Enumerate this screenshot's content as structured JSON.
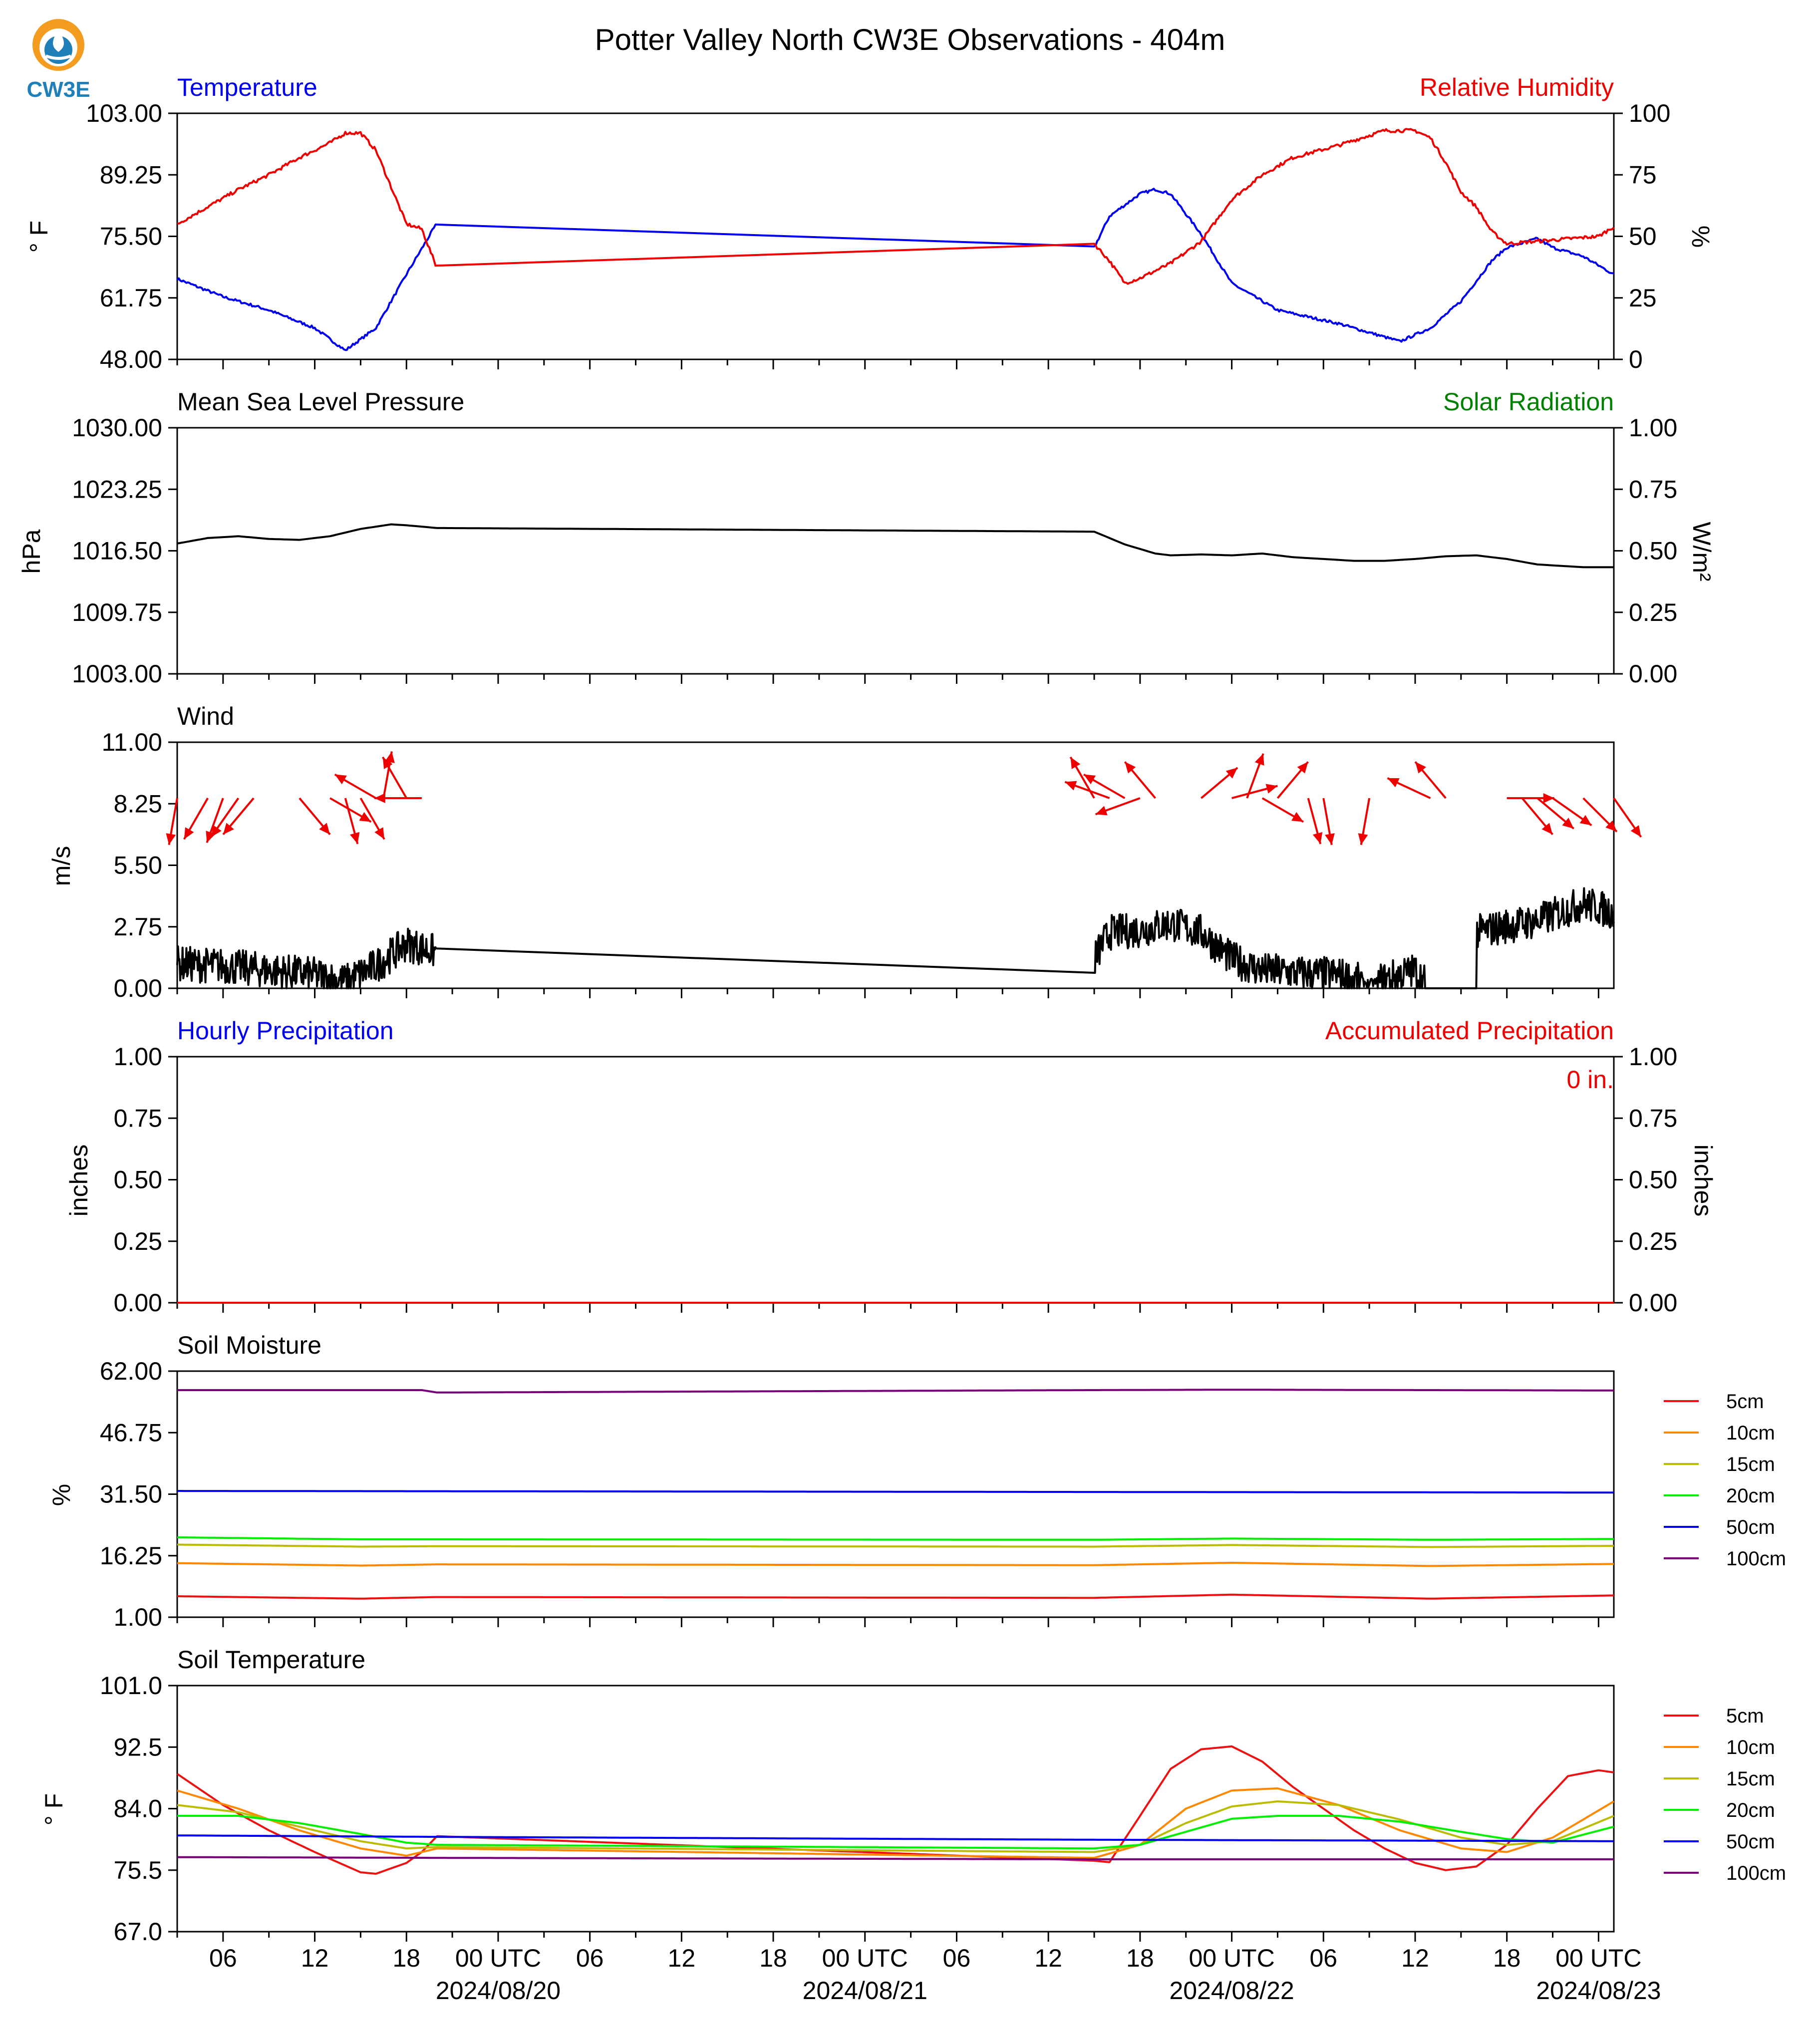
{
  "title": "Potter Valley North CW3E Observations - 404m",
  "logo_text": "CW3E",
  "colors": {
    "temperature": "#0000ee",
    "humidity": "#ee0000",
    "solar": "#008000",
    "black": "#000000",
    "brand_orange": "#f39c1f",
    "brand_blue": "#1f7fb8",
    "soil_5cm": "#ee1111",
    "soil_10cm": "#ff8800",
    "soil_15cm": "#bbbb00",
    "soil_20cm": "#00ee00",
    "soil_50cm": "#0000ee",
    "soil_100cm": "#770077"
  },
  "x_axis": {
    "hour_ticks": [
      {
        "hour": 6,
        "label": "06"
      },
      {
        "hour": 12,
        "label": "12"
      },
      {
        "hour": 18,
        "label": "18"
      },
      {
        "hour": 24,
        "label": "00 UTC",
        "date": "2024/08/20"
      },
      {
        "hour": 30,
        "label": "06"
      },
      {
        "hour": 36,
        "label": "12"
      },
      {
        "hour": 42,
        "label": "18"
      },
      {
        "hour": 48,
        "label": "00 UTC",
        "date": "2024/08/21"
      },
      {
        "hour": 54,
        "label": "06"
      },
      {
        "hour": 60,
        "label": "12"
      },
      {
        "hour": 66,
        "label": "18"
      },
      {
        "hour": 72,
        "label": "00 UTC",
        "date": "2024/08/22"
      },
      {
        "hour": 78,
        "label": "06"
      },
      {
        "hour": 84,
        "label": "12"
      },
      {
        "hour": 90,
        "label": "18"
      },
      {
        "hour": 96,
        "label": "00 UTC",
        "date": "2024/08/23"
      }
    ],
    "range_hours": [
      3,
      97
    ]
  },
  "chart_data": [
    {
      "type": "line",
      "title_left": "Temperature",
      "title_right": "Relative Humidity",
      "ylabel": "° F",
      "ylabel_right": "%",
      "ylim": [
        48,
        103
      ],
      "ylim_right": [
        0,
        100
      ],
      "yticks": [
        "103.00",
        "89.25",
        "75.50",
        "61.75",
        "48.00"
      ],
      "yticks_right": [
        "100",
        "75",
        "50",
        "25",
        "0"
      ],
      "series": [
        {
          "axis": "left",
          "color_key": "temperature",
          "x": [
            3,
            6,
            9,
            12,
            14,
            16,
            18,
            20,
            63,
            64,
            66,
            67,
            68,
            70,
            72,
            75,
            79,
            83,
            85,
            87,
            89,
            90,
            92,
            93,
            95,
            97
          ],
          "y": [
            66,
            62,
            59,
            55,
            50,
            55,
            67,
            78.5,
            73,
            80,
            85,
            86,
            85,
            76,
            65,
            59,
            56,
            52,
            55,
            61,
            70,
            73,
            75,
            73,
            71,
            67
          ]
        },
        {
          "axis": "right",
          "color_key": "humidity",
          "x": [
            3,
            5,
            7,
            9,
            11,
            13,
            14,
            15,
            16,
            17,
            18,
            19,
            20,
            63,
            64,
            65,
            66,
            68,
            70,
            72,
            74,
            76,
            79,
            82,
            84,
            85,
            86,
            87,
            88,
            89,
            90,
            92,
            94,
            96,
            97
          ],
          "y": [
            55,
            62,
            69,
            75,
            82,
            88,
            92,
            92,
            85,
            70,
            55,
            53,
            37,
            47,
            40,
            31,
            33,
            39,
            48,
            65,
            75,
            82,
            87,
            93,
            93,
            90,
            80,
            68,
            62,
            52,
            47,
            48,
            49,
            50,
            54
          ]
        }
      ]
    },
    {
      "type": "line",
      "title_left": "Mean Sea Level Pressure",
      "title_right": "Solar Radiation",
      "ylabel": "hPa",
      "ylabel_right": "W/m²",
      "ylim": [
        1003,
        1030
      ],
      "ylim_right": [
        0,
        1
      ],
      "yticks": [
        "1030.00",
        "1023.25",
        "1016.50",
        "1009.75",
        "1003.00"
      ],
      "yticks_right": [
        "1.00",
        "0.75",
        "0.50",
        "0.25",
        "0.00"
      ],
      "series": [
        {
          "axis": "left",
          "color_key": "black",
          "x": [
            3,
            5,
            7,
            9,
            11,
            13,
            15,
            17,
            18,
            20,
            63,
            65,
            67,
            68,
            70,
            72,
            74,
            76,
            78,
            80,
            82,
            84,
            86,
            88,
            90,
            92,
            95,
            97
          ],
          "y": [
            1017.3,
            1017.9,
            1018.1,
            1017.8,
            1017.7,
            1018.1,
            1018.9,
            1019.4,
            1019.3,
            1019.0,
            1018.6,
            1017.2,
            1016.2,
            1016.0,
            1016.1,
            1016.0,
            1016.2,
            1015.8,
            1015.6,
            1015.4,
            1015.4,
            1015.6,
            1015.9,
            1016.0,
            1015.6,
            1015.0,
            1014.7,
            1014.7
          ]
        }
      ]
    },
    {
      "type": "line",
      "title_left": "Wind",
      "ylabel": "m/s",
      "ylim": [
        0,
        11
      ],
      "yticks": [
        "11.00",
        "8.25",
        "5.50",
        "2.75",
        "0.00"
      ],
      "series": [
        {
          "axis": "left",
          "color_key": "black",
          "noisy": true,
          "x": [
            3,
            6,
            9,
            12,
            14,
            16,
            18,
            20,
            63,
            64,
            66,
            68,
            70,
            72,
            74,
            76,
            79,
            81,
            83,
            84,
            85,
            86,
            88,
            90,
            92,
            95,
            97
          ],
          "y": [
            1.1,
            1.0,
            0.8,
            0.6,
            0.3,
            1.0,
            2.0,
            1.6,
            1.3,
            2.5,
            2.6,
            2.9,
            2.5,
            1.3,
            0.8,
            0.7,
            0.6,
            0.2,
            0.6,
            0.8,
            0.0,
            0.0,
            2.5,
            2.8,
            3.0,
            3.8,
            3.4
          ]
        }
      ],
      "arrows": {
        "color_key": "humidity",
        "y_level": 8.5,
        "items": [
          {
            "x": 3,
            "dir": 190
          },
          {
            "x": 5,
            "dir": 210
          },
          {
            "x": 6,
            "dir": 200
          },
          {
            "x": 7,
            "dir": 215
          },
          {
            "x": 8,
            "dir": 220
          },
          {
            "x": 11,
            "dir": 140
          },
          {
            "x": 13,
            "dir": 120
          },
          {
            "x": 14,
            "dir": 165
          },
          {
            "x": 15,
            "dir": 150
          },
          {
            "x": 16,
            "dir": 300
          },
          {
            "x": 16.5,
            "dir": 10
          },
          {
            "x": 18,
            "dir": 330
          },
          {
            "x": 19,
            "dir": 270
          },
          {
            "x": 63,
            "dir": 330
          },
          {
            "x": 64,
            "dir": 290
          },
          {
            "x": 65,
            "dir": 300
          },
          {
            "x": 66,
            "dir": 250
          },
          {
            "x": 67,
            "dir": 320
          },
          {
            "x": 70,
            "dir": 50
          },
          {
            "x": 72,
            "dir": 75
          },
          {
            "x": 73,
            "dir": 20
          },
          {
            "x": 74,
            "dir": 120
          },
          {
            "x": 75,
            "dir": 40
          },
          {
            "x": 77,
            "dir": 165
          },
          {
            "x": 78,
            "dir": 170
          },
          {
            "x": 81,
            "dir": 190
          },
          {
            "x": 85,
            "dir": 295
          },
          {
            "x": 86,
            "dir": 320
          },
          {
            "x": 90,
            "dir": 90
          },
          {
            "x": 91,
            "dir": 140
          },
          {
            "x": 92,
            "dir": 130
          },
          {
            "x": 93,
            "dir": 125
          },
          {
            "x": 95,
            "dir": 135
          },
          {
            "x": 97,
            "dir": 145
          }
        ]
      }
    },
    {
      "type": "line",
      "title_left": "Hourly Precipitation",
      "title_right": "Accumulated Precipitation",
      "ylabel": "inches",
      "ylabel_right": "inches",
      "ylim": [
        0,
        1
      ],
      "ylim_right": [
        0,
        1
      ],
      "yticks": [
        "1.00",
        "0.75",
        "0.50",
        "0.25",
        "0.00"
      ],
      "yticks_right": [
        "1.00",
        "0.75",
        "0.50",
        "0.25",
        "0.00"
      ],
      "annotation": "0 in.",
      "series": [
        {
          "axis": "left",
          "color_key": "humidity",
          "x": [
            3,
            97
          ],
          "y": [
            0,
            0
          ]
        }
      ]
    },
    {
      "type": "line",
      "title_left": "Soil Moisture",
      "ylabel": "%",
      "ylim": [
        1,
        62
      ],
      "yticks": [
        "62.00",
        "46.75",
        "31.50",
        "16.25",
        "1.00"
      ],
      "legend": [
        "5cm",
        "10cm",
        "15cm",
        "20cm",
        "50cm",
        "100cm"
      ],
      "series": [
        {
          "name": "5cm",
          "color_key": "soil_5cm",
          "x": [
            3,
            15,
            20,
            63,
            72,
            85,
            97
          ],
          "y": [
            6.2,
            5.6,
            6.0,
            5.8,
            6.6,
            5.6,
            6.4
          ]
        },
        {
          "name": "10cm",
          "color_key": "soil_10cm",
          "x": [
            3,
            15,
            20,
            63,
            72,
            85,
            97
          ],
          "y": [
            14.4,
            13.8,
            14.1,
            13.9,
            14.5,
            13.7,
            14.2
          ]
        },
        {
          "name": "15cm",
          "color_key": "soil_15cm",
          "x": [
            3,
            15,
            20,
            63,
            72,
            85,
            97
          ],
          "y": [
            19.0,
            18.5,
            18.6,
            18.5,
            18.9,
            18.4,
            18.7
          ]
        },
        {
          "name": "20cm",
          "color_key": "soil_20cm",
          "x": [
            3,
            15,
            20,
            63,
            72,
            85,
            97
          ],
          "y": [
            20.8,
            20.3,
            20.3,
            20.2,
            20.5,
            20.2,
            20.4
          ]
        },
        {
          "name": "50cm",
          "color_key": "soil_50cm",
          "x": [
            3,
            97
          ],
          "y": [
            32.3,
            31.9
          ]
        },
        {
          "name": "100cm",
          "color_key": "soil_100cm",
          "x": [
            3,
            19,
            20,
            63,
            72,
            97
          ],
          "y": [
            57.3,
            57.3,
            56.7,
            57.3,
            57.4,
            57.2
          ]
        }
      ]
    },
    {
      "type": "line",
      "title_left": "Soil Temperature",
      "ylabel": "° F",
      "ylim": [
        67,
        101
      ],
      "yticks": [
        "101.0",
        "92.5",
        "84.0",
        "75.5",
        "67.0"
      ],
      "legend": [
        "5cm",
        "10cm",
        "15cm",
        "20cm",
        "50cm",
        "100cm"
      ],
      "series": [
        {
          "name": "5cm",
          "color_key": "soil_5cm",
          "x": [
            3,
            6,
            9,
            12,
            15,
            16,
            18,
            19,
            20,
            63,
            64,
            66,
            68,
            70,
            72,
            74,
            76,
            78,
            80,
            82,
            84,
            86,
            88,
            90,
            92,
            94,
            96,
            97
          ],
          "y": [
            88.8,
            84.5,
            81.0,
            78.0,
            75.2,
            75.0,
            76.5,
            78.0,
            80.2,
            76.8,
            76.6,
            83.0,
            89.5,
            92.2,
            92.6,
            90.5,
            87.0,
            84.0,
            81.0,
            78.5,
            76.5,
            75.5,
            76.0,
            79.0,
            84.0,
            88.5,
            89.3,
            89.0
          ]
        },
        {
          "name": "10cm",
          "color_key": "soil_10cm",
          "x": [
            3,
            7,
            11,
            15,
            18,
            20,
            63,
            66,
            69,
            72,
            75,
            79,
            83,
            87,
            90,
            93,
            97
          ],
          "y": [
            86.5,
            84.0,
            81.0,
            78.5,
            77.5,
            78.5,
            77.2,
            79.0,
            84.0,
            86.5,
            86.8,
            84.5,
            81.0,
            78.5,
            78.0,
            80.0,
            85.0
          ]
        },
        {
          "name": "15cm",
          "color_key": "soil_15cm",
          "x": [
            3,
            7,
            11,
            15,
            18,
            20,
            63,
            66,
            69,
            72,
            75,
            79,
            83,
            87,
            90,
            93,
            97
          ],
          "y": [
            84.5,
            83.5,
            81.5,
            79.5,
            78.5,
            78.7,
            78.0,
            79.0,
            82.0,
            84.3,
            85.0,
            84.5,
            82.5,
            80.0,
            79.0,
            79.5,
            83.0
          ]
        },
        {
          "name": "20cm",
          "color_key": "soil_20cm",
          "x": [
            3,
            7,
            11,
            15,
            18,
            20,
            63,
            66,
            69,
            72,
            75,
            79,
            83,
            87,
            90,
            93,
            97
          ],
          "y": [
            83.0,
            83.0,
            82.0,
            80.5,
            79.3,
            79.0,
            78.5,
            79.0,
            80.8,
            82.6,
            83.0,
            83.0,
            82.2,
            80.8,
            79.8,
            79.3,
            81.5
          ]
        },
        {
          "name": "50cm",
          "color_key": "soil_50cm",
          "x": [
            3,
            20,
            63,
            97
          ],
          "y": [
            80.3,
            80.1,
            79.7,
            79.5
          ]
        },
        {
          "name": "100cm",
          "color_key": "soil_100cm",
          "x": [
            3,
            20,
            63,
            97
          ],
          "y": [
            77.3,
            77.2,
            77.0,
            77.0
          ]
        }
      ]
    }
  ]
}
